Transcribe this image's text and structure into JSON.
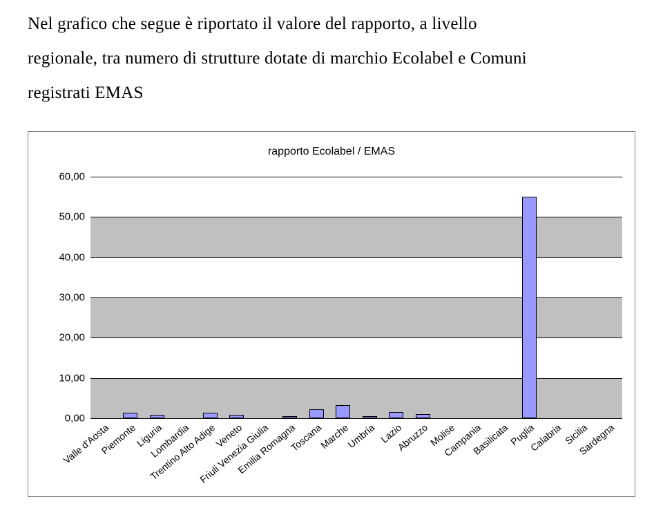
{
  "intro": {
    "line1": "Nel grafico che segue è riportato il valore del rapporto, a livello",
    "line2": "regionale, tra numero di strutture dotate di marchio Ecolabel e Comuni",
    "line3": "registrati EMAS"
  },
  "chart": {
    "type": "bar",
    "title": "rapporto Ecolabel / EMAS",
    "title_fontsize": 16,
    "background_color": "#ffffff",
    "frame_border_color": "#7f7f7f",
    "plot_border_color": "#000000",
    "grid_color": "#000000",
    "band_color": "#c0c0c0",
    "bar_fill": "#9999ff",
    "bar_border": "#000000",
    "ylim": [
      0,
      60
    ],
    "ytick_step": 10,
    "yticks": [
      "0,00",
      "10,00",
      "20,00",
      "30,00",
      "40,00",
      "50,00",
      "60,00"
    ],
    "categories": [
      "Valle d'Aosta",
      "Piemonte",
      "Liguria",
      "Lombardia",
      "Trentino Alto Adige",
      "Veneto",
      "Friuli Venezia Giulia",
      "Emilia Romagna",
      "Toscana",
      "Marche",
      "Umbria",
      "Lazio",
      "Abruzzo",
      "Molise",
      "Campania",
      "Basilicata",
      "Puglia",
      "Calabria",
      "Sicilia",
      "Sardegna"
    ],
    "values": [
      0,
      1.3,
      0.8,
      0,
      1.3,
      0.8,
      0,
      0.6,
      2.3,
      3.2,
      0.6,
      1.6,
      1.0,
      0,
      0,
      0,
      55,
      0,
      0,
      0
    ],
    "bar_width_ratio": 0.55,
    "label_fontsize": 15,
    "xlabel_fontsize": 14,
    "xlabel_rotation_deg": -40
  }
}
